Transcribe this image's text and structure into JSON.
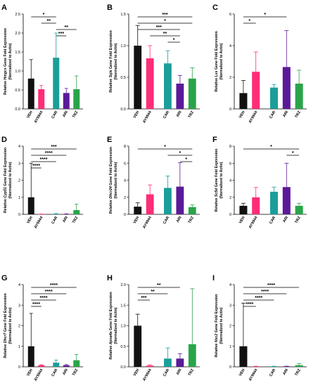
{
  "colors": {
    "VEH": "#111111",
    "AY9944": "#ff2d78",
    "CAR": "#1b9e9a",
    "ARI": "#5b1a99",
    "TRZ": "#2aa44a"
  },
  "chart_data": [
    {
      "panel": "A",
      "type": "bar",
      "ylabel_prefix": "Relative ",
      "gene": "Hmgcs",
      "ylabel_suffix": " Gene Fold Expression",
      "ylabel2": "(Normalized to Actin)",
      "categories": [
        "VEH",
        "AY9944",
        "CAR",
        "ARI",
        "TRZ"
      ],
      "values": [
        0.8,
        0.52,
        1.35,
        0.42,
        0.52
      ],
      "errors": [
        0.5,
        0.1,
        0.65,
        0.12,
        0.35
      ],
      "ylim": [
        0,
        2.5
      ],
      "yticks": [
        "0.0",
        "0.5",
        "1.0",
        "1.5",
        "2.0",
        "2.5"
      ],
      "significance": [
        {
          "from": 0,
          "to": 2,
          "label": "*"
        },
        {
          "from": 1,
          "to": 2,
          "label": "**"
        },
        {
          "from": 2,
          "to": 4,
          "label": "**"
        },
        {
          "from": 2,
          "to": 3,
          "label": "***"
        }
      ]
    },
    {
      "panel": "B",
      "type": "bar",
      "ylabel_prefix": "Relative ",
      "gene": "Sqle",
      "ylabel_suffix": " Gene Fold Expression",
      "ylabel2": "(Normalized to Actin)",
      "categories": [
        "VEH",
        "AY9944",
        "CAR",
        "ARI",
        "TRZ"
      ],
      "values": [
        1.0,
        0.8,
        0.72,
        0.4,
        0.48
      ],
      "errors": [
        0.32,
        0.2,
        0.2,
        0.13,
        0.17
      ],
      "ylim": [
        0,
        1.5
      ],
      "yticks": [
        "0.0",
        "0.5",
        "1.0",
        "1.5"
      ],
      "significance": [
        {
          "from": 0,
          "to": 4,
          "label": "***"
        },
        {
          "from": 0,
          "to": 4,
          "label": "*"
        },
        {
          "from": 0,
          "to": 3,
          "label": "***"
        },
        {
          "from": 1,
          "to": 3,
          "label": "**"
        },
        {
          "from": 2,
          "to": 3,
          "label": "*"
        }
      ]
    },
    {
      "panel": "C",
      "type": "bar",
      "ylabel_prefix": "Relative ",
      "gene": "Lss",
      "ylabel_suffix": " Gene Fold Expression",
      "ylabel2": "(Normalized to Actin)",
      "categories": [
        "VEH",
        "AY9944",
        "CAR",
        "ARI",
        "TRZ"
      ],
      "values": [
        1.0,
        2.35,
        1.35,
        2.65,
        1.6
      ],
      "errors": [
        0.8,
        1.25,
        0.2,
        2.3,
        0.85
      ],
      "ylim": [
        0,
        6
      ],
      "yticks": [
        "0",
        "2",
        "4",
        "6"
      ],
      "significance": [
        {
          "from": 0,
          "to": 3,
          "label": "*"
        },
        {
          "from": 0,
          "to": 1,
          "label": "*"
        }
      ]
    },
    {
      "panel": "D",
      "type": "bar",
      "ylabel_prefix": "Relative ",
      "gene": "Cyp51",
      "ylabel_suffix": " Gene Fold Expression",
      "ylabel2": "(Normalized to Actin)",
      "categories": [
        "VEH",
        "AY9944",
        "CAR",
        "ARI",
        "TRZ"
      ],
      "values": [
        1.0,
        0.01,
        0.03,
        0.02,
        0.25
      ],
      "errors": [
        2.0,
        0.01,
        0.02,
        0.01,
        0.35
      ],
      "ylim": [
        0,
        4
      ],
      "yticks": [
        "0",
        "1",
        "2",
        "3",
        "4"
      ],
      "significance": [
        {
          "from": 0,
          "to": 4,
          "label": "***"
        },
        {
          "from": 0,
          "to": 3,
          "label": "****"
        },
        {
          "from": 0,
          "to": 2,
          "label": "****"
        },
        {
          "from": 0,
          "to": 1,
          "label": "****"
        }
      ]
    },
    {
      "panel": "E",
      "type": "bar",
      "ylabel_prefix": "Relative ",
      "gene": "Dhcr24",
      "ylabel_suffix": " Gene Fold Expression",
      "ylabel2": "(Normalized to Actin)",
      "categories": [
        "VEH",
        "AY9944",
        "CAR",
        "ARI",
        "TRZ"
      ],
      "values": [
        0.9,
        2.35,
        3.1,
        3.25,
        0.85
      ],
      "errors": [
        0.45,
        1.1,
        1.4,
        2.8,
        0.25
      ],
      "ylim": [
        0,
        8
      ],
      "yticks": [
        "0",
        "2",
        "4",
        "6",
        "8"
      ],
      "significance": [
        {
          "from": 0,
          "to": 4,
          "label": "*"
        },
        {
          "from": 2,
          "to": 4,
          "label": "*"
        },
        {
          "from": 3,
          "to": 4,
          "label": "*"
        }
      ]
    },
    {
      "panel": "F",
      "type": "bar",
      "ylabel_prefix": "Relative ",
      "gene": "Sc5d",
      "ylabel_suffix": " Gene Fold Expression",
      "ylabel2": "(Normalized to Actin)",
      "categories": [
        "VEH",
        "AY9944",
        "CAR",
        "ARI",
        "TRZ"
      ],
      "values": [
        1.0,
        2.0,
        2.65,
        3.2,
        1.0
      ],
      "errors": [
        0.3,
        1.15,
        0.55,
        2.8,
        0.3
      ],
      "ylim": [
        0,
        8
      ],
      "yticks": [
        "0",
        "2",
        "4",
        "6",
        "8"
      ],
      "significance": [
        {
          "from": 0,
          "to": 4,
          "label": "*"
        },
        {
          "from": 3,
          "to": 4,
          "label": "*"
        }
      ]
    },
    {
      "panel": "G",
      "type": "bar",
      "ylabel_prefix": "Relative ",
      "gene": "Dhcr7",
      "ylabel_suffix": " Gene Fold Expression",
      "ylabel2": "(Normalized to Actin)",
      "categories": [
        "VEH",
        "AY9944",
        "CAR",
        "ARI",
        "TRZ"
      ],
      "values": [
        1.0,
        0.08,
        0.2,
        0.08,
        0.32
      ],
      "errors": [
        1.6,
        0.02,
        0.13,
        0.03,
        0.28
      ],
      "ylim": [
        0,
        4
      ],
      "yticks": [
        "0",
        "1",
        "2",
        "3",
        "4"
      ],
      "significance": [
        {
          "from": 0,
          "to": 4,
          "label": "****"
        },
        {
          "from": 0,
          "to": 3,
          "label": "****"
        },
        {
          "from": 0,
          "to": 2,
          "label": "****"
        },
        {
          "from": 0,
          "to": 1,
          "label": "****"
        }
      ]
    },
    {
      "panel": "H",
      "type": "bar",
      "ylabel_prefix": "Relative ",
      "gene": "Apoa4a",
      "ylabel_suffix": " Gene Fold Expression",
      "ylabel2": "(Normalized to Actin)",
      "categories": [
        "VEH",
        "AY9944",
        "CAR",
        "ARI",
        "TRZ"
      ],
      "values": [
        1.0,
        0.03,
        0.2,
        0.2,
        0.55
      ],
      "errors": [
        0.28,
        0.02,
        0.26,
        0.12,
        1.35
      ],
      "ylim": [
        0,
        2.0
      ],
      "yticks": [
        "0.0",
        "0.5",
        "1.0",
        "1.5",
        "2.0"
      ],
      "significance": [
        {
          "from": 0,
          "to": 3,
          "label": "**"
        },
        {
          "from": 0,
          "to": 2,
          "label": "**"
        },
        {
          "from": 0,
          "to": 1,
          "label": "***"
        }
      ]
    },
    {
      "panel": "I",
      "type": "bar",
      "ylabel_prefix": "Relative ",
      "gene": "Nsc2",
      "ylabel_suffix": " Gene Fold Expression",
      "ylabel2": "(Normalized to Actin)",
      "categories": [
        "VEH",
        "AY9944",
        "CAR",
        "ARI",
        "TRZ"
      ],
      "values": [
        1.0,
        0.02,
        0.02,
        0.02,
        0.08
      ],
      "errors": [
        2.1,
        0.01,
        0.01,
        0.01,
        0.07
      ],
      "ylim": [
        0,
        4
      ],
      "yticks": [
        "0",
        "1",
        "2",
        "3",
        "4"
      ],
      "significance": [
        {
          "from": 0,
          "to": 4,
          "label": "****"
        },
        {
          "from": 0,
          "to": 3,
          "label": "****"
        },
        {
          "from": 0,
          "to": 2,
          "label": "****"
        },
        {
          "from": 0,
          "to": 1,
          "label": "****"
        }
      ]
    }
  ]
}
